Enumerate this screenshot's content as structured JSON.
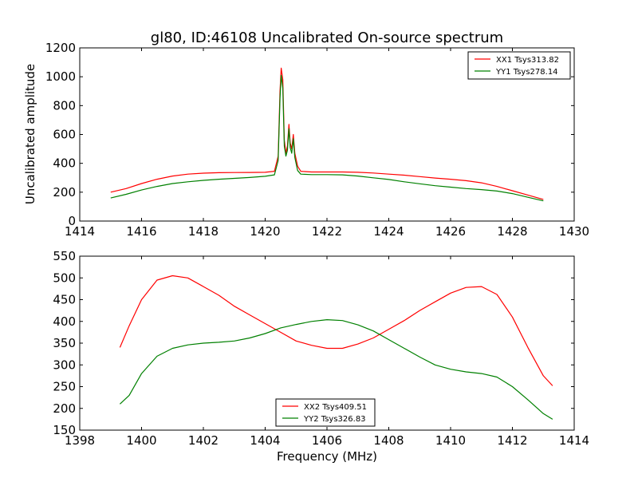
{
  "chart_data": [
    {
      "type": "line",
      "title": "gl80, ID:46108 Uncalibrated On-source spectrum",
      "xlabel": "",
      "ylabel": "Uncalibrated amplitude",
      "xlim": [
        1414,
        1430
      ],
      "ylim": [
        0,
        1200
      ],
      "xticks": [
        "1414",
        "1416",
        "1418",
        "1420",
        "1422",
        "1424",
        "1426",
        "1428",
        "1430"
      ],
      "yticks": [
        "0",
        "200",
        "400",
        "600",
        "800",
        "1000",
        "1200"
      ],
      "legend_position": "top-right",
      "series": [
        {
          "name": "XX1 Tsys313.82",
          "color": "#ff0000",
          "points": [
            [
              1415.0,
              200
            ],
            [
              1415.5,
              225
            ],
            [
              1416.0,
              260
            ],
            [
              1416.5,
              290
            ],
            [
              1417.0,
              312
            ],
            [
              1417.5,
              325
            ],
            [
              1418.0,
              332
            ],
            [
              1418.5,
              335
            ],
            [
              1419.0,
              336
            ],
            [
              1419.5,
              337
            ],
            [
              1420.0,
              338
            ],
            [
              1420.3,
              345
            ],
            [
              1420.42,
              450
            ],
            [
              1420.48,
              900
            ],
            [
              1420.52,
              1060
            ],
            [
              1420.57,
              980
            ],
            [
              1420.62,
              560
            ],
            [
              1420.67,
              470
            ],
            [
              1420.72,
              520
            ],
            [
              1420.77,
              670
            ],
            [
              1420.81,
              540
            ],
            [
              1420.86,
              500
            ],
            [
              1420.91,
              600
            ],
            [
              1420.96,
              470
            ],
            [
              1421.05,
              380
            ],
            [
              1421.15,
              345
            ],
            [
              1421.5,
              340
            ],
            [
              1422.0,
              340
            ],
            [
              1422.5,
              340
            ],
            [
              1423.0,
              338
            ],
            [
              1423.5,
              333
            ],
            [
              1424.0,
              325
            ],
            [
              1424.5,
              318
            ],
            [
              1425.0,
              308
            ],
            [
              1425.5,
              298
            ],
            [
              1426.0,
              290
            ],
            [
              1426.5,
              280
            ],
            [
              1427.0,
              265
            ],
            [
              1427.5,
              240
            ],
            [
              1428.0,
              210
            ],
            [
              1428.5,
              180
            ],
            [
              1429.0,
              150
            ]
          ]
        },
        {
          "name": "YY1 Tsys278.14",
          "color": "#008000",
          "points": [
            [
              1415.0,
              160
            ],
            [
              1415.5,
              185
            ],
            [
              1416.0,
              215
            ],
            [
              1416.5,
              240
            ],
            [
              1417.0,
              260
            ],
            [
              1417.5,
              272
            ],
            [
              1418.0,
              282
            ],
            [
              1418.5,
              290
            ],
            [
              1419.0,
              296
            ],
            [
              1419.5,
              302
            ],
            [
              1420.0,
              310
            ],
            [
              1420.3,
              320
            ],
            [
              1420.42,
              420
            ],
            [
              1420.48,
              850
            ],
            [
              1420.52,
              1010
            ],
            [
              1420.57,
              920
            ],
            [
              1420.62,
              520
            ],
            [
              1420.67,
              450
            ],
            [
              1420.72,
              490
            ],
            [
              1420.77,
              640
            ],
            [
              1420.81,
              510
            ],
            [
              1420.86,
              470
            ],
            [
              1420.91,
              570
            ],
            [
              1420.96,
              440
            ],
            [
              1421.05,
              350
            ],
            [
              1421.15,
              325
            ],
            [
              1421.5,
              322
            ],
            [
              1422.0,
              322
            ],
            [
              1422.5,
              320
            ],
            [
              1423.0,
              312
            ],
            [
              1423.5,
              300
            ],
            [
              1424.0,
              288
            ],
            [
              1424.5,
              272
            ],
            [
              1425.0,
              258
            ],
            [
              1425.5,
              245
            ],
            [
              1426.0,
              235
            ],
            [
              1426.5,
              225
            ],
            [
              1427.0,
              218
            ],
            [
              1427.5,
              208
            ],
            [
              1428.0,
              190
            ],
            [
              1428.5,
              165
            ],
            [
              1429.0,
              140
            ]
          ]
        }
      ]
    },
    {
      "type": "line",
      "title": "",
      "xlabel": "Frequency (MHz)",
      "ylabel": "",
      "xlim": [
        1398,
        1414
      ],
      "ylim": [
        150,
        550
      ],
      "xticks": [
        "1398",
        "1400",
        "1402",
        "1404",
        "1406",
        "1408",
        "1410",
        "1412",
        "1414"
      ],
      "yticks": [
        "150",
        "200",
        "250",
        "300",
        "350",
        "400",
        "450",
        "500",
        "550"
      ],
      "legend_position": "bottom-center",
      "series": [
        {
          "name": "XX2 Tsys409.51",
          "color": "#ff0000",
          "points": [
            [
              1399.3,
              340
            ],
            [
              1399.6,
              390
            ],
            [
              1400.0,
              450
            ],
            [
              1400.5,
              495
            ],
            [
              1401.0,
              505
            ],
            [
              1401.5,
              500
            ],
            [
              1402.0,
              480
            ],
            [
              1402.5,
              460
            ],
            [
              1403.0,
              435
            ],
            [
              1403.5,
              415
            ],
            [
              1404.0,
              395
            ],
            [
              1404.5,
              375
            ],
            [
              1405.0,
              355
            ],
            [
              1405.5,
              345
            ],
            [
              1406.0,
              338
            ],
            [
              1406.5,
              338
            ],
            [
              1407.0,
              348
            ],
            [
              1407.5,
              362
            ],
            [
              1408.0,
              382
            ],
            [
              1408.5,
              402
            ],
            [
              1409.0,
              425
            ],
            [
              1409.5,
              445
            ],
            [
              1410.0,
              465
            ],
            [
              1410.5,
              478
            ],
            [
              1411.0,
              480
            ],
            [
              1411.5,
              462
            ],
            [
              1412.0,
              410
            ],
            [
              1412.5,
              340
            ],
            [
              1413.0,
              275
            ],
            [
              1413.3,
              252
            ]
          ]
        },
        {
          "name": "YY2 Tsys326.83",
          "color": "#008000",
          "points": [
            [
              1399.3,
              210
            ],
            [
              1399.6,
              230
            ],
            [
              1400.0,
              280
            ],
            [
              1400.5,
              320
            ],
            [
              1401.0,
              338
            ],
            [
              1401.5,
              346
            ],
            [
              1402.0,
              350
            ],
            [
              1402.5,
              352
            ],
            [
              1403.0,
              355
            ],
            [
              1403.5,
              362
            ],
            [
              1404.0,
              372
            ],
            [
              1404.5,
              385
            ],
            [
              1405.0,
              393
            ],
            [
              1405.5,
              400
            ],
            [
              1406.0,
              404
            ],
            [
              1406.5,
              402
            ],
            [
              1407.0,
              392
            ],
            [
              1407.5,
              378
            ],
            [
              1408.0,
              358
            ],
            [
              1408.5,
              338
            ],
            [
              1409.0,
              318
            ],
            [
              1409.5,
              300
            ],
            [
              1410.0,
              290
            ],
            [
              1410.5,
              284
            ],
            [
              1411.0,
              280
            ],
            [
              1411.5,
              272
            ],
            [
              1412.0,
              250
            ],
            [
              1412.5,
              220
            ],
            [
              1413.0,
              188
            ],
            [
              1413.3,
              175
            ]
          ]
        }
      ]
    }
  ]
}
